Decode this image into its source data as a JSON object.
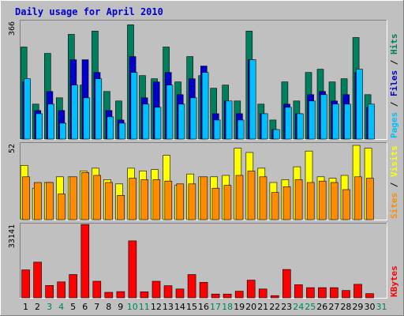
{
  "chart_data": {
    "type": "bar",
    "title": "Daily usage for April 2010",
    "categories": [
      "1",
      "2",
      "3",
      "4",
      "5",
      "6",
      "7",
      "8",
      "9",
      "10",
      "11",
      "12",
      "13",
      "14",
      "15",
      "16",
      "17",
      "18",
      "19",
      "20",
      "21",
      "22",
      "23",
      "24",
      "25",
      "26",
      "27",
      "28",
      "29",
      "30",
      "31"
    ],
    "weekend_days": [
      "3",
      "4",
      "10",
      "11",
      "17",
      "18",
      "24",
      "25",
      "31"
    ],
    "colors": {
      "hits": "#007f5f",
      "files": "#0000cc",
      "pages": "#00bfff",
      "visits": "#ffff00",
      "sites": "#ff8c00",
      "kbytes": "#ff0000",
      "weekday_label": "#000000",
      "weekend_label": "#00805f",
      "panel_bg": "#c0c0c0",
      "frame_bg": "#c0c0c0"
    },
    "panels": [
      {
        "name": "traffic",
        "ymax_label": "366",
        "ylim": [
          0,
          366
        ],
        "side_labels": [
          {
            "text": "Hits",
            "color": "#007f5f"
          },
          {
            "text": "Files",
            "color": "#0000cc"
          },
          {
            "text": "Pages",
            "color": "#00bfff"
          }
        ],
        "series": [
          {
            "name": "Hits",
            "color": "#007f5f",
            "values": [
              290,
              110,
              270,
              130,
              330,
              170,
              340,
              150,
              120,
              360,
              200,
              190,
              290,
              180,
              260,
              200,
              160,
              170,
              120,
              340,
              110,
              60,
              180,
              120,
              210,
              220,
              180,
              190,
              320,
              140,
              null
            ]
          },
          {
            "name": "Files",
            "color": "#0000cc",
            "values": [
              180,
              90,
              150,
              90,
              250,
              250,
              210,
              90,
              60,
              260,
              130,
              180,
              210,
              140,
              190,
              230,
              80,
              120,
              80,
              250,
              80,
              30,
              110,
              80,
              140,
              150,
              120,
              140,
              210,
              100,
              null
            ]
          },
          {
            "name": "Pages",
            "color": "#00bfff",
            "values": [
              190,
              80,
              110,
              50,
              170,
              130,
              190,
              70,
              50,
              210,
              110,
              100,
              170,
              110,
              130,
              210,
              60,
              120,
              60,
              250,
              80,
              30,
              100,
              80,
              120,
              140,
              110,
              110,
              220,
              110,
              null
            ]
          }
        ]
      },
      {
        "name": "visitors",
        "ymax_label": "52",
        "ylim": [
          0,
          52
        ],
        "side_labels": [
          {
            "text": "Visits",
            "color": "#ffff00"
          },
          {
            "text": "Sites",
            "color": "#ff8c00"
          }
        ],
        "series": [
          {
            "name": "Visits",
            "color": "#ffff00",
            "values": [
              38,
              22,
              26,
              30,
              30,
              34,
              36,
              28,
              25,
              36,
              34,
              35,
              45,
              24,
              32,
              30,
              30,
              31,
              50,
              47,
              36,
              26,
              28,
              37,
              48,
              30,
              29,
              31,
              52,
              50,
              null
            ]
          },
          {
            "name": "Sites",
            "color": "#ff8c00",
            "values": [
              30,
              26,
              26,
              18,
              30,
              33,
              31,
              26,
              17,
              29,
              28,
              28,
              27,
              25,
              25,
              30,
              22,
              24,
              31,
              34,
              30,
              19,
              23,
              28,
              26,
              27,
              26,
              21,
              30,
              29,
              null
            ]
          }
        ]
      },
      {
        "name": "volume",
        "ymax_label": "33141",
        "ylim": [
          0,
          33141
        ],
        "side_labels": [
          {
            "text": "KBytes",
            "color": "#ff0000"
          }
        ],
        "series": [
          {
            "name": "KBytes",
            "color": "#ff0000",
            "values": [
              12600,
              16100,
              5600,
              7200,
              10500,
              33100,
              7500,
              2500,
              2800,
              25700,
              2700,
              7500,
              5500,
              4000,
              10500,
              7000,
              1700,
              1700,
              3000,
              8000,
              4000,
              1000,
              12800,
              5900,
              4600,
              4600,
              4600,
              3300,
              6100,
              1900,
              null
            ]
          }
        ]
      }
    ]
  }
}
